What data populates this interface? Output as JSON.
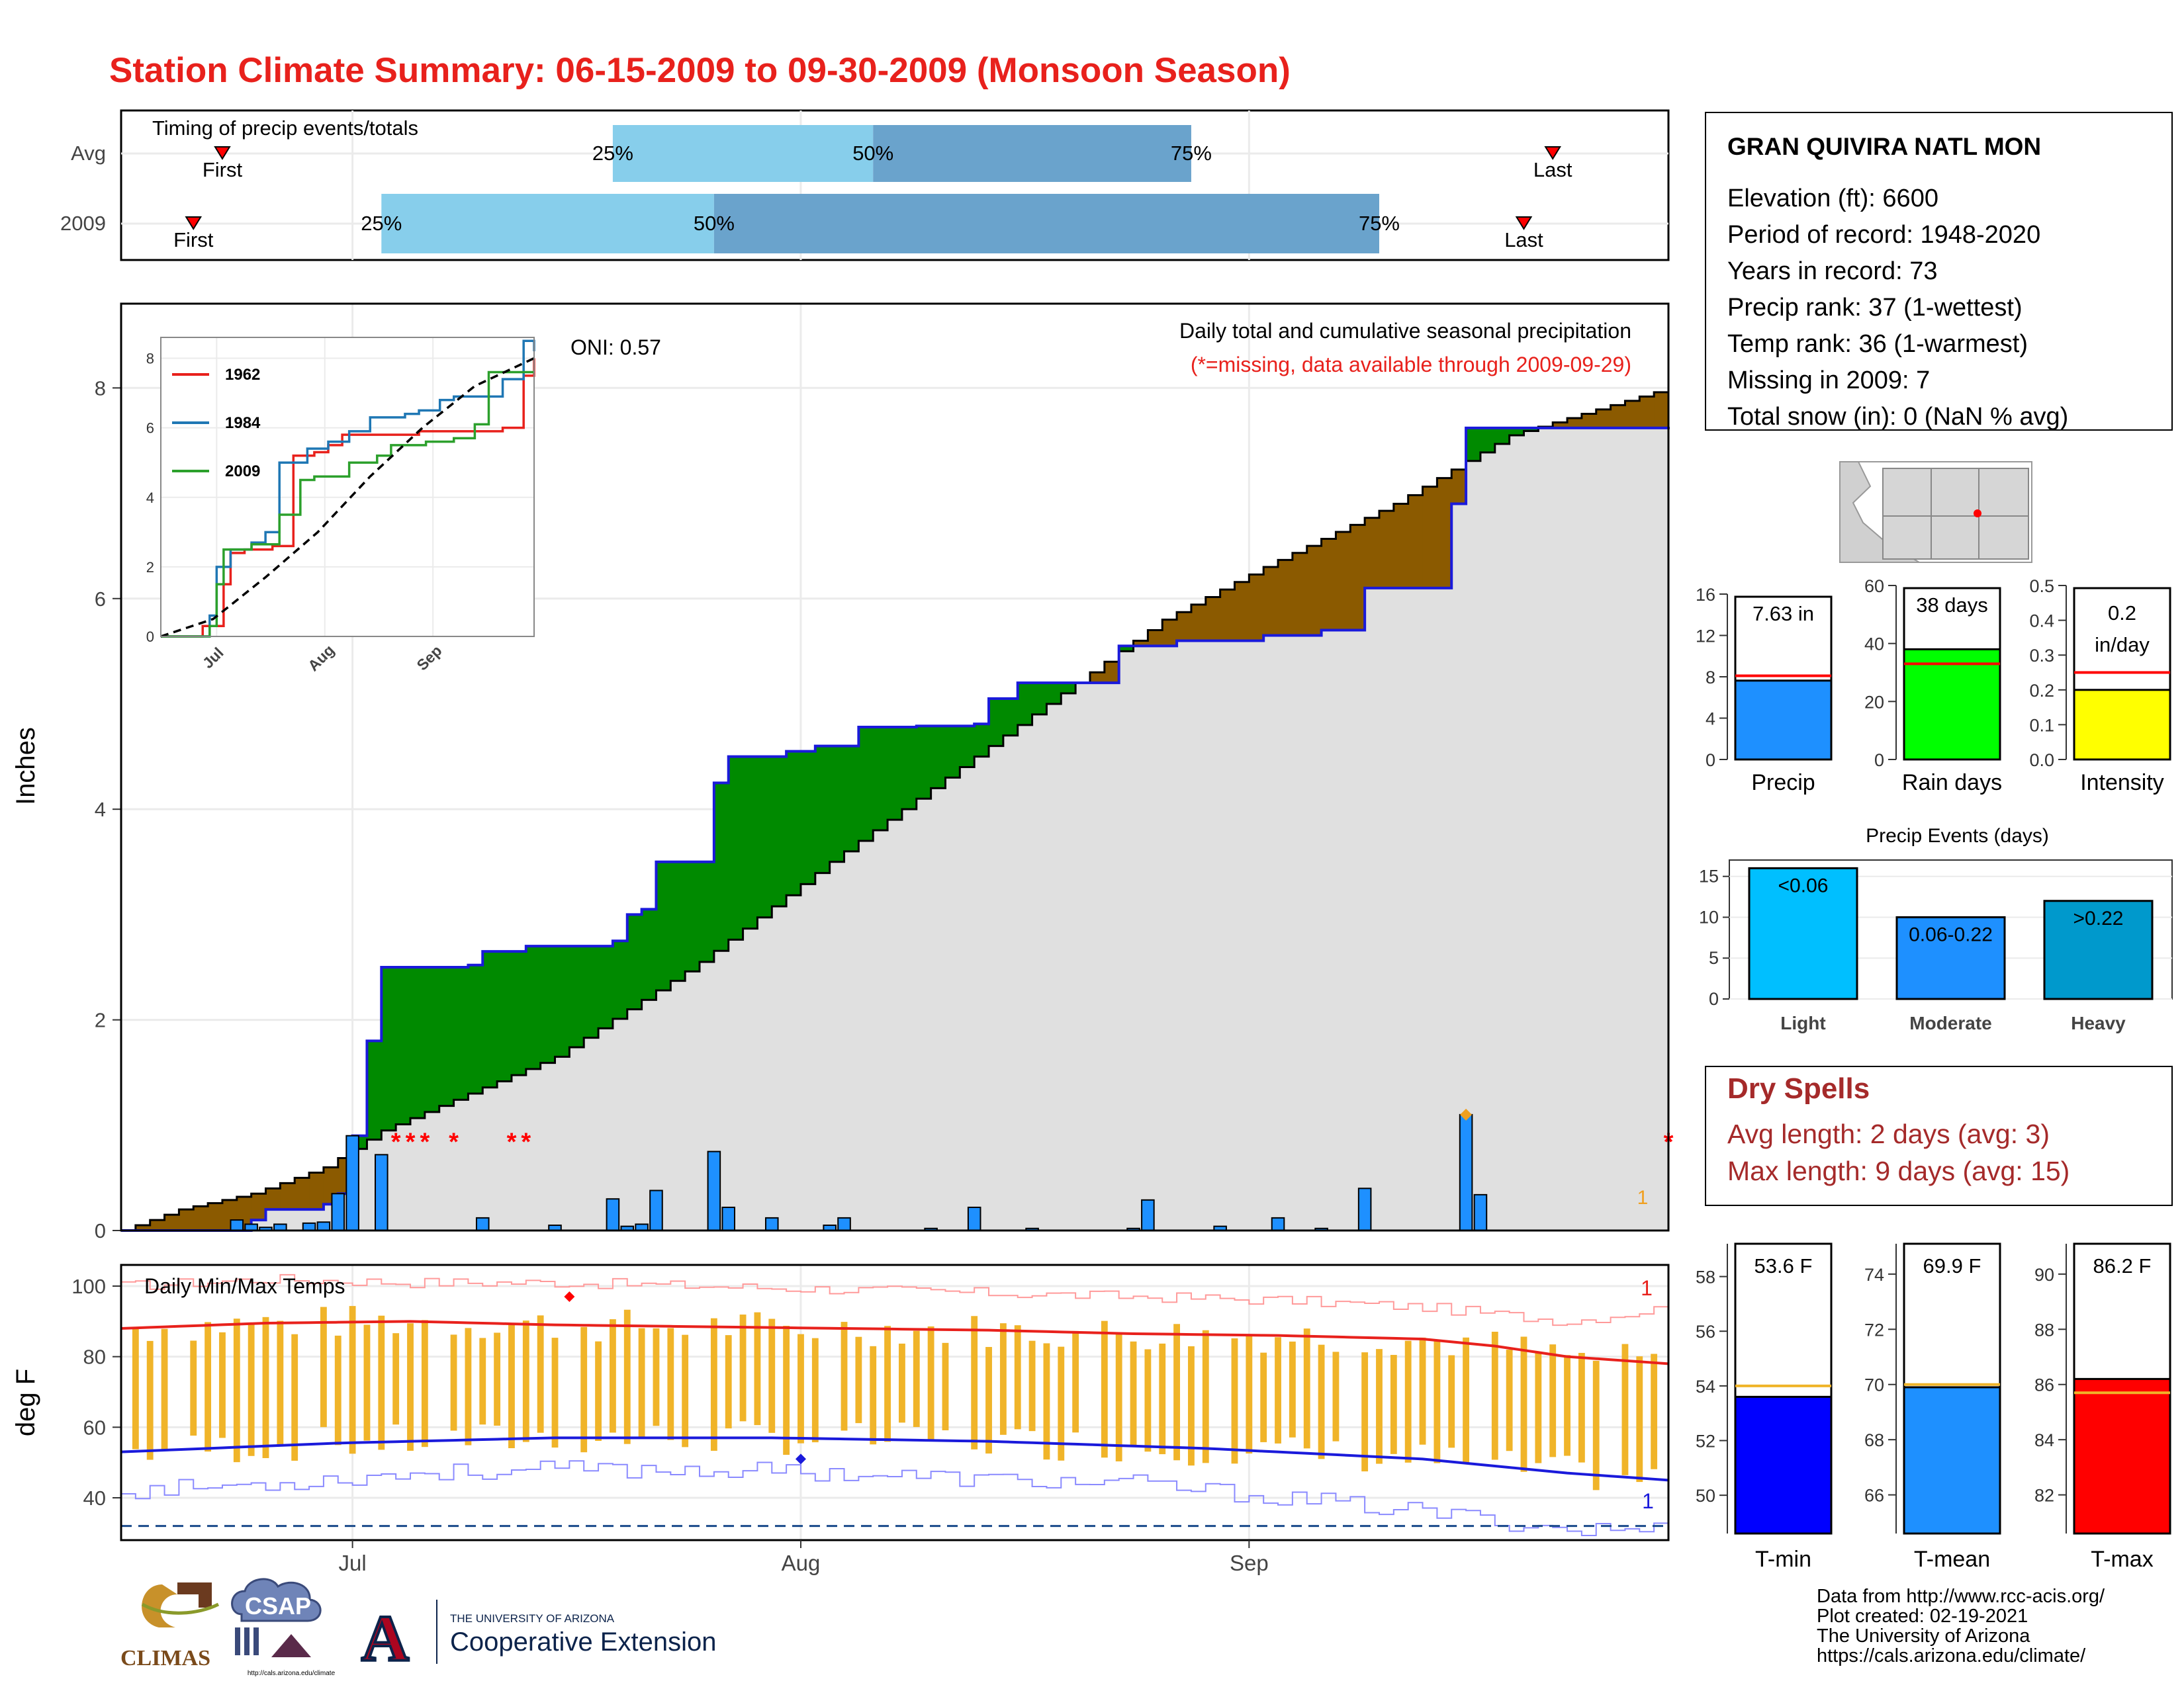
{
  "title": "Station Climate Summary: 06-15-2009 to 09-30-2009 (Monsoon Season)",
  "station": {
    "name": "GRAN QUIVIRA NATL MON",
    "lines": [
      "Elevation (ft): 6600",
      "Period of record: 1948-2020",
      "Years in record: 73",
      "Precip rank: 37 (1-wettest)",
      "Temp rank: 36 (1-warmest)",
      "Missing in 2009: 7",
      "Total snow (in): 0 (NaN % avg)"
    ]
  },
  "colors": {
    "title": "#e8211c",
    "cum_actual": "#1a1adb",
    "above_avg": "#008a00",
    "below_avg": "#8b5a00",
    "fill_gray": "#e0e0e0",
    "daily_bar": "#1e90ff",
    "missing": "#ff0000",
    "temp_bar": "#f0b429",
    "tmax": "#e8211c",
    "tmin": "#1a1adb",
    "light_blue": "#87ceeb",
    "mid_blue": "#6aa3cc",
    "dry_spell": "#a52a2a",
    "light_bar": "#00bfff",
    "moderate_bar": "#1e90ff",
    "heavy_bar": "#0099cc"
  },
  "x_axis": {
    "ticks": [
      {
        "label": "Jul",
        "day": 16
      },
      {
        "label": "Aug",
        "day": 47
      },
      {
        "label": "Sep",
        "day": 78
      }
    ]
  },
  "chart_data": [
    {
      "id": "timing",
      "type": "bar",
      "title": "Timing of precip events/totals",
      "rows": [
        {
          "label": "Avg",
          "first_day": 7,
          "q25_day": 34,
          "q50_day": 52,
          "q75_day": 74,
          "last_day": 99,
          "q25": "25%",
          "q50": "50%",
          "q75": "75%",
          "first": "First",
          "last": "Last"
        },
        {
          "label": "2009",
          "first_day": 5,
          "q25_day": 18,
          "q50_day": 41,
          "q75_day": 87,
          "last_day": 97,
          "q25": "25%",
          "q50": "50%",
          "q75": "75%",
          "first": "First",
          "last": "Last"
        }
      ]
    },
    {
      "id": "precip",
      "type": "area",
      "title": "Daily total and cumulative seasonal precipitation",
      "subtitle": "(*=missing, data available through 2009-09-29)",
      "annotation": "ONI: 0.57",
      "ylabel": "Inches",
      "ylim": [
        0,
        8.8
      ],
      "yticks": [
        0,
        2,
        4,
        6,
        8
      ],
      "avg_cum_key": [
        [
          0,
          0
        ],
        [
          4,
          0.2
        ],
        [
          9,
          0.35
        ],
        [
          14,
          0.6
        ],
        [
          18,
          0.95
        ],
        [
          30,
          1.65
        ],
        [
          40,
          2.55
        ],
        [
          49,
          3.5
        ],
        [
          60,
          4.6
        ],
        [
          65,
          5.1
        ],
        [
          72,
          5.8
        ],
        [
          79,
          6.3
        ],
        [
          88,
          6.9
        ],
        [
          96,
          7.55
        ],
        [
          107,
          8.0
        ]
      ],
      "actual_cum_key": [
        [
          0,
          0
        ],
        [
          8,
          0.0
        ],
        [
          9,
          0.1
        ],
        [
          10,
          0.2
        ],
        [
          14,
          0.25
        ],
        [
          15,
          0.35
        ],
        [
          16,
          0.9
        ],
        [
          17,
          1.8
        ],
        [
          18,
          2.5
        ],
        [
          24,
          2.52
        ],
        [
          25,
          2.65
        ],
        [
          28,
          2.7
        ],
        [
          34,
          2.75
        ],
        [
          35,
          3.0
        ],
        [
          36,
          3.05
        ],
        [
          37,
          3.5
        ],
        [
          41,
          4.25
        ],
        [
          42,
          4.5
        ],
        [
          46,
          4.55
        ],
        [
          48,
          4.6
        ],
        [
          51,
          4.78
        ],
        [
          55,
          4.79
        ],
        [
          59,
          4.81
        ],
        [
          60,
          5.05
        ],
        [
          62,
          5.2
        ],
        [
          68,
          5.2
        ],
        [
          69,
          5.55
        ],
        [
          73,
          5.6
        ],
        [
          79,
          5.65
        ],
        [
          83,
          5.7
        ],
        [
          86,
          6.1
        ],
        [
          92,
          6.9
        ],
        [
          93,
          7.62
        ],
        [
          107,
          7.63
        ]
      ],
      "daily_precip": [
        [
          8,
          0.1
        ],
        [
          9,
          0.06
        ],
        [
          10,
          0.03
        ],
        [
          11,
          0.06
        ],
        [
          13,
          0.07
        ],
        [
          14,
          0.08
        ],
        [
          15,
          0.35
        ],
        [
          16,
          0.9
        ],
        [
          18,
          0.72
        ],
        [
          25,
          0.12
        ],
        [
          30,
          0.05
        ],
        [
          34,
          0.3
        ],
        [
          35,
          0.04
        ],
        [
          36,
          0.06
        ],
        [
          37,
          0.38
        ],
        [
          41,
          0.75
        ],
        [
          42,
          0.22
        ],
        [
          45,
          0.12
        ],
        [
          49,
          0.05
        ],
        [
          50,
          0.12
        ],
        [
          56,
          0.02
        ],
        [
          59,
          0.22
        ],
        [
          63,
          0.02
        ],
        [
          70,
          0.02
        ],
        [
          71,
          0.29
        ],
        [
          76,
          0.04
        ],
        [
          80,
          0.12
        ],
        [
          83,
          0.02
        ],
        [
          86,
          0.4
        ],
        [
          93,
          1.1
        ],
        [
          94,
          0.34
        ]
      ],
      "missing_days": [
        19,
        20,
        21,
        23,
        27,
        28,
        107
      ],
      "missing_label": "*",
      "marker_day": 93,
      "corner_label": "1"
    },
    {
      "id": "inset",
      "type": "line",
      "xticks": [
        "Jul",
        "Aug",
        "Sep"
      ],
      "yticks": [
        0,
        2,
        4,
        6,
        8
      ],
      "series": [
        {
          "name": "1962",
          "color": "#e8211c",
          "values": [
            [
              0,
              0
            ],
            [
              12,
              0.3
            ],
            [
              18,
              1.5
            ],
            [
              20,
              2.4
            ],
            [
              24,
              2.5
            ],
            [
              32,
              2.6
            ],
            [
              38,
              5.2
            ],
            [
              44,
              5.3
            ],
            [
              48,
              5.5
            ],
            [
              52,
              5.8
            ],
            [
              60,
              5.8
            ],
            [
              66,
              5.8
            ],
            [
              74,
              5.9
            ],
            [
              84,
              5.9
            ],
            [
              98,
              6.0
            ],
            [
              104,
              7.5
            ],
            [
              107,
              8.0
            ]
          ]
        },
        {
          "name": "1984",
          "color": "#1f77b4",
          "values": [
            [
              0,
              0
            ],
            [
              14,
              0.6
            ],
            [
              16,
              2.0
            ],
            [
              20,
              2.5
            ],
            [
              26,
              2.7
            ],
            [
              30,
              3.0
            ],
            [
              34,
              5.0
            ],
            [
              42,
              5.4
            ],
            [
              48,
              5.6
            ],
            [
              54,
              5.9
            ],
            [
              60,
              6.3
            ],
            [
              70,
              6.4
            ],
            [
              74,
              6.5
            ],
            [
              80,
              6.8
            ],
            [
              84,
              6.9
            ],
            [
              98,
              7.4
            ],
            [
              104,
              8.5
            ],
            [
              107,
              8.2
            ]
          ]
        },
        {
          "name": "2009",
          "color": "#2ca02c",
          "values": [
            [
              0,
              0
            ],
            [
              14,
              0.3
            ],
            [
              16,
              1.5
            ],
            [
              18,
              2.5
            ],
            [
              26,
              2.65
            ],
            [
              34,
              3.5
            ],
            [
              40,
              4.5
            ],
            [
              44,
              4.6
            ],
            [
              54,
              5.0
            ],
            [
              62,
              5.2
            ],
            [
              66,
              5.5
            ],
            [
              76,
              5.6
            ],
            [
              84,
              5.7
            ],
            [
              90,
              6.1
            ],
            [
              94,
              7.6
            ],
            [
              107,
              7.6
            ]
          ]
        },
        {
          "name": "avg",
          "color": "#000000",
          "dashed": true,
          "values": [
            [
              0,
              0
            ],
            [
              15,
              0.5
            ],
            [
              30,
              1.7
            ],
            [
              45,
              3.0
            ],
            [
              60,
              4.6
            ],
            [
              75,
              6.0
            ],
            [
              90,
              7.2
            ],
            [
              107,
              8.0
            ]
          ]
        }
      ]
    },
    {
      "id": "temps",
      "type": "bar",
      "title": "Daily Min/Max Temps",
      "ylabel": "deg F",
      "ylim": [
        28,
        106
      ],
      "yticks": [
        40,
        60,
        80,
        100
      ],
      "freeze_line": 32,
      "corner_top": "1",
      "corner_bottom": "1",
      "record_high_day": 31,
      "record_low_day": 47,
      "avg_tmax_key": [
        [
          0,
          88
        ],
        [
          10,
          89.5
        ],
        [
          20,
          90
        ],
        [
          30,
          89
        ],
        [
          40,
          88.5
        ],
        [
          50,
          88
        ],
        [
          60,
          87.5
        ],
        [
          70,
          86.5
        ],
        [
          80,
          86
        ],
        [
          90,
          85
        ],
        [
          95,
          83
        ],
        [
          100,
          80
        ],
        [
          107,
          78
        ]
      ],
      "avg_tmin_key": [
        [
          0,
          53
        ],
        [
          15,
          55.5
        ],
        [
          30,
          57
        ],
        [
          45,
          57
        ],
        [
          60,
          56
        ],
        [
          75,
          54
        ],
        [
          90,
          51
        ],
        [
          100,
          47
        ],
        [
          107,
          45
        ]
      ],
      "record_high_key": [
        [
          0,
          100
        ],
        [
          10,
          102
        ],
        [
          20,
          101
        ],
        [
          30,
          101
        ],
        [
          40,
          100
        ],
        [
          50,
          99
        ],
        [
          60,
          98
        ],
        [
          70,
          97
        ],
        [
          80,
          96
        ],
        [
          90,
          94
        ],
        [
          100,
          90
        ],
        [
          107,
          94
        ]
      ],
      "record_low_key": [
        [
          0,
          42
        ],
        [
          10,
          44
        ],
        [
          20,
          47
        ],
        [
          30,
          48
        ],
        [
          40,
          48
        ],
        [
          50,
          47
        ],
        [
          60,
          45
        ],
        [
          70,
          44
        ],
        [
          80,
          40
        ],
        [
          90,
          36
        ],
        [
          100,
          31
        ],
        [
          107,
          31
        ]
      ]
    },
    {
      "id": "precip_summary",
      "type": "bar",
      "panels": [
        {
          "label": "Precip",
          "value_text": "7.63 in",
          "value": 7.63,
          "avg": 8.1,
          "ylim": [
            0,
            16
          ],
          "yticks": [
            0,
            4,
            8,
            12,
            16
          ],
          "color": "#1e90ff"
        },
        {
          "label": "Rain days",
          "value_text": "38 days",
          "value": 38,
          "avg": 33,
          "ylim": [
            0,
            60
          ],
          "yticks": [
            0,
            20,
            40,
            60
          ],
          "color": "#00ff00"
        },
        {
          "label": "Intensity",
          "value_text": "0.2 in/day",
          "value_line1": "0.2",
          "value_line2": "in/day",
          "value": 0.2,
          "avg": 0.25,
          "ylim": [
            0,
            0.5
          ],
          "yticks": [
            0.0,
            0.1,
            0.2,
            0.3,
            0.4,
            0.5
          ],
          "color": "#ffff00"
        }
      ]
    },
    {
      "id": "events",
      "type": "bar",
      "title": "Precip Events (days)",
      "categories": [
        "Light",
        "Moderate",
        "Heavy"
      ],
      "bar_labels": [
        "<0.06",
        "0.06-0.22",
        ">0.22"
      ],
      "values": [
        16,
        10,
        12
      ],
      "ylim": [
        0,
        17
      ],
      "yticks": [
        0,
        5,
        10,
        15
      ]
    },
    {
      "id": "temp_summary",
      "type": "bar",
      "panels": [
        {
          "label": "T-min",
          "value_text": "53.6 F",
          "value": 53.6,
          "avg": 54.0,
          "ylim": [
            48.6,
            59.2
          ],
          "yticks": [
            50,
            52,
            54,
            56,
            58
          ],
          "color": "#0000ff"
        },
        {
          "label": "T-mean",
          "value_text": "69.9 F",
          "value": 69.9,
          "avg": 70.0,
          "ylim": [
            64.6,
            75.1
          ],
          "yticks": [
            66,
            68,
            70,
            72,
            74
          ],
          "color": "#1e90ff"
        },
        {
          "label": "T-max",
          "value_text": "86.2 F",
          "value": 86.2,
          "avg": 85.7,
          "ylim": [
            80.6,
            91.1
          ],
          "yticks": [
            82,
            84,
            86,
            88,
            90
          ],
          "color": "#ff0000"
        }
      ]
    }
  ],
  "dry_spells": {
    "title": "Dry Spells",
    "avg_line": "Avg length: 2 days (avg: 3)",
    "max_line": "Max length: 9 days (avg: 15)"
  },
  "credits": [
    "Data from http://www.rcc-acis.org/",
    "Plot created: 02-19-2021",
    "The University of Arizona",
    "https://cals.arizona.edu/climate/"
  ],
  "logos": {
    "climas": "CLIMAS",
    "csap": "CSAP",
    "csap_url": "http://cals.arizona.edu/climate",
    "ua_small": "THE UNIVERSITY OF ARIZONA",
    "ua_big": "Cooperative Extension",
    "ua_letter": "A"
  }
}
